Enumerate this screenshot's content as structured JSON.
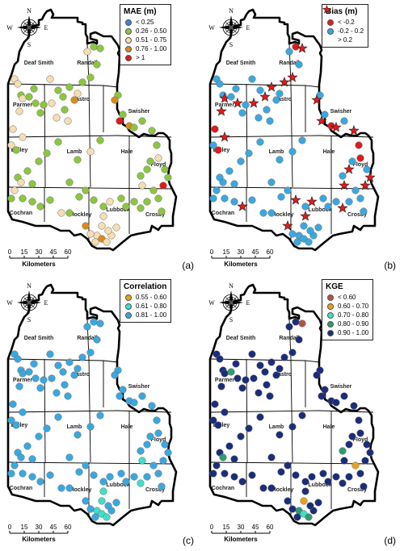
{
  "counties": [
    "Deaf Smith",
    "Randall",
    "Parmer",
    "Castro",
    "Swisher",
    "Bailey",
    "Lamb",
    "Hale",
    "Floyd",
    "Cochran",
    "Hockley",
    "Lubbock",
    "Crosby"
  ],
  "compass": {
    "n": "N",
    "s": "S",
    "e": "E",
    "w": "W"
  },
  "scale": {
    "ticks": [
      "0",
      "15",
      "30",
      "45",
      "60"
    ],
    "unit": "Kilometers"
  },
  "panels": [
    {
      "id": "a",
      "label": "(a)",
      "legend_title": "MAE (m)",
      "classes": [
        {
          "label": "< 0.25",
          "color": "#3f7fd6"
        },
        {
          "label": "0.26 - 0.50",
          "color": "#8cc63f"
        },
        {
          "label": "0.51 - 0.75",
          "color": "#f5deb3"
        },
        {
          "label": "0.76 - 1.00",
          "color": "#d98c1a"
        },
        {
          "label": "> 1",
          "color": "#e01b1b"
        }
      ]
    },
    {
      "id": "b",
      "label": "(b)",
      "legend_title": "Bias (m)",
      "classes": [
        {
          "label": "< -0.2",
          "color": "#e01b1b",
          "shape": "circle"
        },
        {
          "label": "-0.2 - 0.2",
          "color": "#3aa8e0",
          "shape": "circle"
        },
        {
          "label": "> 0.2",
          "color": "#e01b1b",
          "shape": "star"
        }
      ]
    },
    {
      "id": "c",
      "label": "(c)",
      "legend_title": "Correlation",
      "classes": [
        {
          "label": "0.55 - 0.60",
          "color": "#e8a21a"
        },
        {
          "label": "0.61 - 0.80",
          "color": "#3ee0c8"
        },
        {
          "label": "0.81 - 1.00",
          "color": "#3aa8e0"
        }
      ]
    },
    {
      "id": "d",
      "label": "(d)",
      "legend_title": "KGE",
      "classes": [
        {
          "label": "< 0.60",
          "color": "#b5523b"
        },
        {
          "label": "0.60 - 0.70",
          "color": "#e8a21a"
        },
        {
          "label": "0.70 - 0.80",
          "color": "#3ee0c8"
        },
        {
          "label": "0.80 - 0.90",
          "color": "#2e9c73"
        },
        {
          "label": "0.90 - 1.00",
          "color": "#1b2d7a"
        }
      ]
    }
  ]
}
